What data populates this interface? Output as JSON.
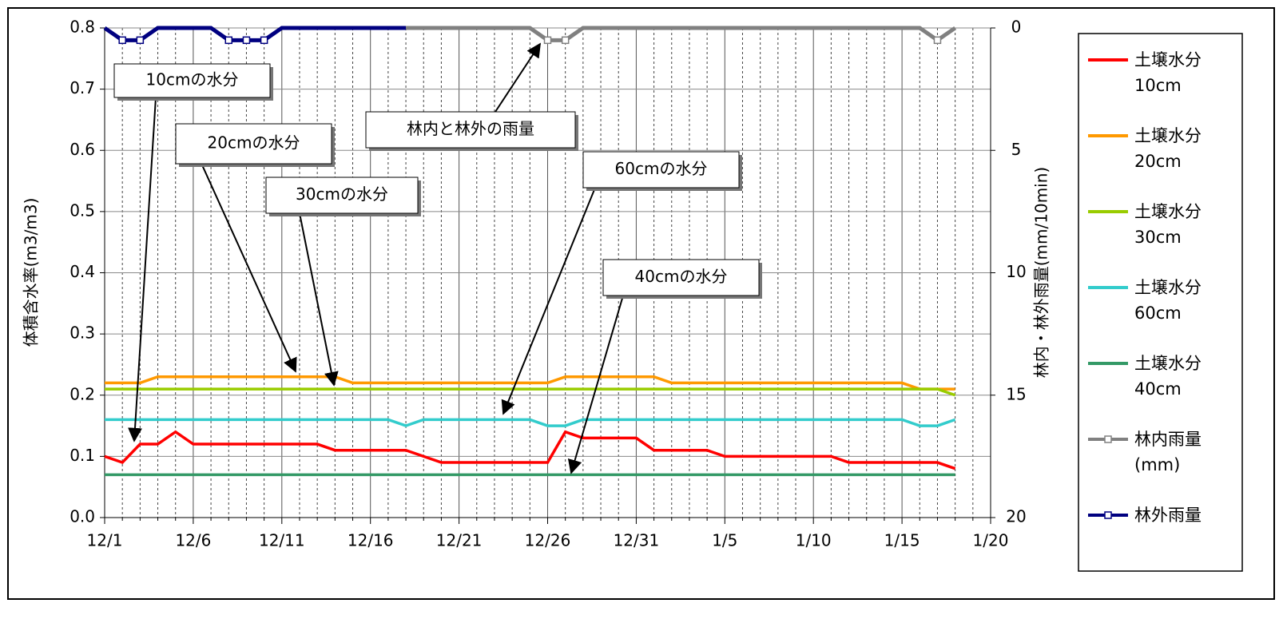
{
  "chart_data": {
    "type": "line",
    "ylabel": "体積含水率(m3/m3)",
    "y2label": "林内・林外雨量(mm/10min)",
    "categories": [
      "12/1",
      null,
      null,
      null,
      null,
      "12/6",
      null,
      null,
      null,
      null,
      "12/11",
      null,
      null,
      null,
      null,
      "12/16",
      null,
      null,
      null,
      null,
      "12/21",
      null,
      null,
      null,
      null,
      "12/26",
      null,
      null,
      null,
      null,
      "12/31",
      null,
      null,
      null,
      null,
      "1/5",
      null,
      null,
      null,
      null,
      "1/10",
      null,
      null,
      null,
      null,
      "1/15",
      null,
      null,
      null,
      null,
      "1/20"
    ],
    "ylim": [
      0,
      0.8
    ],
    "yticks": [
      {
        "value": 0,
        "label": "0.0"
      },
      0.1,
      0.2,
      0.3,
      0.4,
      0.5,
      0.6,
      0.7,
      0.8
    ],
    "y2lim": [
      20,
      0
    ],
    "y2ticks": [
      0,
      5,
      10,
      15,
      20
    ],
    "grid": true,
    "series": [
      {
        "name": "土壌水分\n10cm",
        "color": "#ff0000",
        "values": [
          0.1,
          0.09,
          0.12,
          0.12,
          0.14,
          0.12,
          0.12,
          0.12,
          0.12,
          0.12,
          0.12,
          0.12,
          0.12,
          0.11,
          0.11,
          0.11,
          0.11,
          0.11,
          0.1,
          0.09,
          0.09,
          0.09,
          0.09,
          0.09,
          0.09,
          0.09,
          0.14,
          0.13,
          0.13,
          0.13,
          0.13,
          0.11,
          0.11,
          0.11,
          0.11,
          0.1,
          0.1,
          0.1,
          0.1,
          0.1,
          0.1,
          0.1,
          0.09,
          0.09,
          0.09,
          0.09,
          0.09,
          0.09,
          0.08,
          null,
          null
        ]
      },
      {
        "name": "土壌水分\n20cm",
        "color": "#ff9900",
        "values": [
          0.22,
          0.22,
          0.22,
          0.23,
          0.23,
          0.23,
          0.23,
          0.23,
          0.23,
          0.23,
          0.23,
          0.23,
          0.23,
          0.23,
          0.22,
          0.22,
          0.22,
          0.22,
          0.22,
          0.22,
          0.22,
          0.22,
          0.22,
          0.22,
          0.22,
          0.22,
          0.23,
          0.23,
          0.23,
          0.23,
          0.23,
          0.23,
          0.22,
          0.22,
          0.22,
          0.22,
          0.22,
          0.22,
          0.22,
          0.22,
          0.22,
          0.22,
          0.22,
          0.22,
          0.22,
          0.22,
          0.21,
          0.21,
          0.21,
          null,
          null
        ]
      },
      {
        "name": "土壌水分\n30cm",
        "color": "#99cc00",
        "values": [
          0.21,
          0.21,
          0.21,
          0.21,
          0.21,
          0.21,
          0.21,
          0.21,
          0.21,
          0.21,
          0.21,
          0.21,
          0.21,
          0.21,
          0.21,
          0.21,
          0.21,
          0.21,
          0.21,
          0.21,
          0.21,
          0.21,
          0.21,
          0.21,
          0.21,
          0.21,
          0.21,
          0.21,
          0.21,
          0.21,
          0.21,
          0.21,
          0.21,
          0.21,
          0.21,
          0.21,
          0.21,
          0.21,
          0.21,
          0.21,
          0.21,
          0.21,
          0.21,
          0.21,
          0.21,
          0.21,
          0.21,
          0.21,
          0.2,
          null,
          null
        ]
      },
      {
        "name": "土壌水分\n60cm",
        "color": "#33cccc",
        "values": [
          0.16,
          0.16,
          0.16,
          0.16,
          0.16,
          0.16,
          0.16,
          0.16,
          0.16,
          0.16,
          0.16,
          0.16,
          0.16,
          0.16,
          0.16,
          0.16,
          0.16,
          0.15,
          0.16,
          0.16,
          0.16,
          0.16,
          0.16,
          0.16,
          0.16,
          0.15,
          0.15,
          0.16,
          0.16,
          0.16,
          0.16,
          0.16,
          0.16,
          0.16,
          0.16,
          0.16,
          0.16,
          0.16,
          0.16,
          0.16,
          0.16,
          0.16,
          0.16,
          0.16,
          0.16,
          0.16,
          0.15,
          0.15,
          0.16,
          null,
          null
        ]
      },
      {
        "name": "土壌水分\n40cm",
        "color": "#339966",
        "values": [
          0.07,
          0.07,
          0.07,
          0.07,
          0.07,
          0.07,
          0.07,
          0.07,
          0.07,
          0.07,
          0.07,
          0.07,
          0.07,
          0.07,
          0.07,
          0.07,
          0.07,
          0.07,
          0.07,
          0.07,
          0.07,
          0.07,
          0.07,
          0.07,
          0.07,
          0.07,
          0.07,
          0.07,
          0.07,
          0.07,
          0.07,
          0.07,
          0.07,
          0.07,
          0.07,
          0.07,
          0.07,
          0.07,
          0.07,
          0.07,
          0.07,
          0.07,
          0.07,
          0.07,
          0.07,
          0.07,
          0.07,
          0.07,
          0.07,
          null,
          null
        ]
      },
      {
        "name": "林内雨量\n(mm)",
        "color": "#808080",
        "axis": "y2",
        "marker": "square",
        "values": [
          null,
          null,
          null,
          null,
          null,
          null,
          null,
          null,
          null,
          null,
          null,
          null,
          null,
          null,
          null,
          null,
          null,
          0,
          0,
          0,
          0,
          0,
          0,
          0,
          0,
          0.5,
          0.5,
          0,
          0,
          0,
          0,
          0,
          0,
          0,
          0,
          0,
          0,
          0,
          0,
          0,
          0,
          0,
          0,
          0,
          0,
          0,
          0,
          0.5,
          0,
          null,
          null
        ]
      },
      {
        "name": "林外雨量",
        "color": "#000080",
        "axis": "y2",
        "marker": "square",
        "values": [
          0,
          0.5,
          0.5,
          0,
          0,
          0,
          0,
          0.5,
          0.5,
          0.5,
          0,
          0,
          0,
          0,
          0,
          0,
          0,
          0,
          null,
          null,
          null,
          null,
          null,
          null,
          null,
          null,
          null,
          null,
          null,
          null,
          null,
          null,
          null,
          null,
          null,
          null,
          null,
          null,
          null,
          null,
          null,
          null,
          null,
          null,
          null,
          null,
          null,
          null,
          null,
          null,
          null
        ]
      }
    ],
    "annotations": [
      "10cmの水分",
      "20cmの水分",
      "30cmの水分",
      "林内と林外の雨量",
      "60cmの水分",
      "40cmの水分"
    ]
  }
}
